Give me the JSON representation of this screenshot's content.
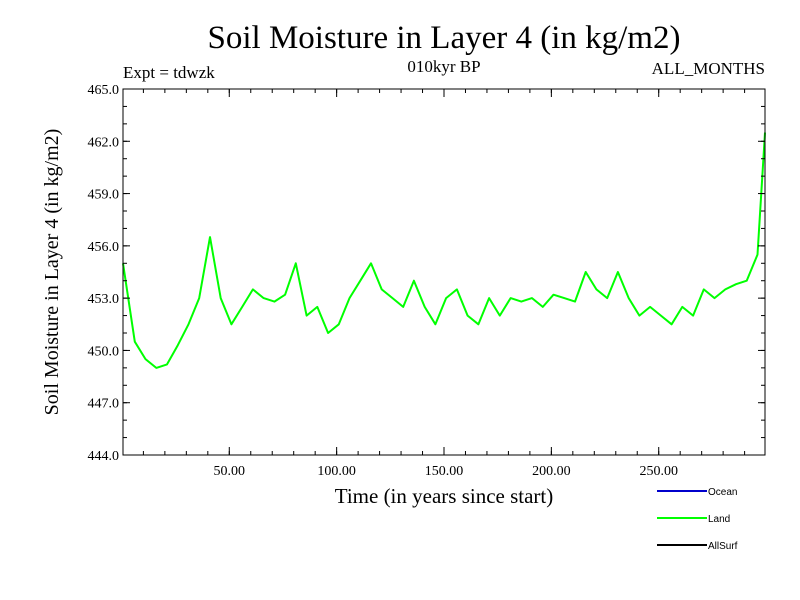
{
  "chart_data": {
    "type": "line",
    "title": "Soil Moisture in Layer 4 (in kg/m2)",
    "subtitle_left": "Expt = tdwzk",
    "subtitle_center": "010kyr BP",
    "subtitle_right": "ALL_MONTHS",
    "xlabel": "Time (in years since start)",
    "ylabel": "Soil Moisture in Layer 4 (in kg/m2)",
    "xlim": [
      0.5,
      299.5
    ],
    "ylim": [
      444.0,
      465.0
    ],
    "x_tick_labels": [
      "50.00",
      "100.00",
      "150.00",
      "200.00",
      "250.00"
    ],
    "x_ticks": [
      50,
      100,
      150,
      200,
      250
    ],
    "y_tick_labels": [
      "444.0",
      "447.0",
      "450.0",
      "453.0",
      "456.0",
      "459.0",
      "462.0",
      "465.0"
    ],
    "y_ticks": [
      444,
      447,
      450,
      453,
      456,
      459,
      462,
      465
    ],
    "x": [
      0.5,
      6,
      11,
      16,
      21,
      26,
      31,
      36,
      41,
      46,
      51,
      56,
      61,
      66,
      71,
      76,
      81,
      86,
      91,
      96,
      101,
      106,
      111,
      116,
      121,
      126,
      131,
      136,
      141,
      146,
      151,
      156,
      161,
      166,
      171,
      176,
      181,
      186,
      191,
      196,
      201,
      206,
      211,
      216,
      221,
      226,
      231,
      236,
      241,
      246,
      251,
      256,
      261,
      266,
      271,
      276,
      281,
      286,
      291,
      296,
      299.5
    ],
    "series": [
      {
        "name": "Land",
        "color": "#00ff00",
        "values": [
          455.0,
          450.5,
          449.5,
          449.0,
          449.2,
          450.3,
          451.5,
          453.0,
          456.5,
          453.0,
          451.5,
          452.5,
          453.5,
          453.0,
          452.8,
          453.2,
          455.0,
          452.0,
          452.5,
          451.0,
          451.5,
          453.0,
          454.0,
          455.0,
          453.5,
          453.0,
          452.5,
          454.0,
          452.5,
          451.5,
          453.0,
          453.5,
          452.0,
          451.5,
          453.0,
          452.0,
          453.0,
          452.8,
          453.0,
          452.5,
          453.2,
          453.0,
          452.8,
          454.5,
          453.5,
          453.0,
          454.5,
          453.0,
          452.0,
          452.5,
          452.0,
          451.5,
          452.5,
          452.0,
          453.5,
          453.0,
          453.5,
          453.8,
          454.0,
          455.5,
          462.5
        ]
      }
    ],
    "legend": {
      "placement": "bottom-right",
      "entries": [
        {
          "label": "Ocean",
          "color": "#0000cc"
        },
        {
          "label": "Land",
          "color": "#00ff00"
        },
        {
          "label": "AllSurf",
          "color": "#000000"
        }
      ]
    },
    "grid": false
  }
}
